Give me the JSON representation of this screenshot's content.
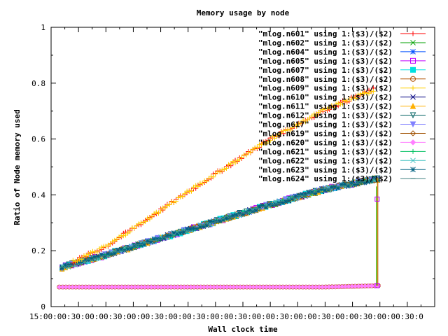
{
  "chart_data": {
    "type": "scatter",
    "title": "Memory usage by node",
    "xlabel": "Wall clock time",
    "ylabel": "Ratio of Node memory used",
    "ylim": [
      0,
      1
    ],
    "yticks": [
      "0",
      "0.2",
      "0.4",
      "0.6",
      "0.8",
      "1"
    ],
    "xticks": [
      "15:00",
      "15:30",
      "16:00",
      "16:30",
      "17:00",
      "17:30",
      "18:00",
      "18:30",
      "19:00",
      "19:30",
      "20:00",
      "20:30",
      "21:00",
      "21:30",
      "22:00"
    ],
    "xtick_text": "15:00:00:30:00:00:30:00:00:30:00:00:30:00:00:30:00:00:30:00:00:30:00:00:30:00:00:30:0",
    "xrange_hours": [
      15,
      22
    ],
    "grid": false,
    "legend_position": "top-right",
    "series": [
      {
        "name": "\"mlog.n601\" using 1:($3)/($2)",
        "color": "#ff0000",
        "marker": "plus",
        "group": "high",
        "points": [
          [
            15.4,
            0.16
          ],
          [
            16.0,
            0.215
          ],
          [
            17.0,
            0.345
          ],
          [
            18.0,
            0.475
          ],
          [
            19.0,
            0.6
          ],
          [
            20.0,
            0.705
          ],
          [
            20.88,
            0.777
          ]
        ]
      },
      {
        "name": "\"mlog.n602\" using 1:($3)/($2)",
        "color": "#00a000",
        "marker": "cross",
        "group": "mid",
        "points": [
          [
            15.2,
            0.14
          ],
          [
            16.0,
            0.185
          ],
          [
            17.0,
            0.245
          ],
          [
            18.0,
            0.305
          ],
          [
            19.0,
            0.365
          ],
          [
            20.0,
            0.42
          ],
          [
            21.0,
            0.46
          ]
        ]
      },
      {
        "name": "\"mlog.n604\" using 1:($3)/($2)",
        "color": "#0050ff",
        "marker": "star",
        "group": "mid",
        "points": [
          [
            15.2,
            0.14
          ],
          [
            16.0,
            0.185
          ],
          [
            17.0,
            0.245
          ],
          [
            18.0,
            0.305
          ],
          [
            19.0,
            0.365
          ],
          [
            20.0,
            0.42
          ],
          [
            21.0,
            0.46
          ]
        ]
      },
      {
        "name": "\"mlog.n605\" using 1:($3)/($2)",
        "color": "#c000ff",
        "marker": "box",
        "group": "mid",
        "points": [
          [
            15.2,
            0.14
          ],
          [
            16.0,
            0.185
          ],
          [
            17.0,
            0.245
          ],
          [
            18.0,
            0.305
          ],
          [
            19.0,
            0.365
          ],
          [
            20.0,
            0.42
          ],
          [
            21.0,
            0.46
          ]
        ]
      },
      {
        "name": "\"mlog.n607\" using 1:($3)/($2)",
        "color": "#00e0e0",
        "marker": "fbox",
        "group": "mid",
        "points": [
          [
            15.2,
            0.14
          ],
          [
            16.0,
            0.185
          ],
          [
            17.0,
            0.245
          ],
          [
            18.0,
            0.305
          ],
          [
            19.0,
            0.365
          ],
          [
            20.0,
            0.42
          ],
          [
            21.0,
            0.46
          ]
        ]
      },
      {
        "name": "\"mlog.n608\" using 1:($3)/($2)",
        "color": "#b05000",
        "marker": "circle",
        "group": "low",
        "points": [
          [
            15.15,
            0.07
          ],
          [
            16.0,
            0.07
          ],
          [
            17.0,
            0.07
          ],
          [
            18.0,
            0.07
          ],
          [
            19.0,
            0.07
          ],
          [
            20.0,
            0.07
          ],
          [
            21.0,
            0.075
          ]
        ]
      },
      {
        "name": "\"mlog.n609\" using 1:($3)/($2)",
        "color": "#ffd000",
        "marker": "plus",
        "group": "high",
        "points": [
          [
            15.4,
            0.16
          ],
          [
            16.0,
            0.215
          ],
          [
            17.0,
            0.345
          ],
          [
            18.0,
            0.475
          ],
          [
            19.0,
            0.6
          ],
          [
            20.0,
            0.705
          ],
          [
            20.88,
            0.775
          ]
        ]
      },
      {
        "name": "\"mlog.n610\" using 1:($3)/($2)",
        "color": "#000080",
        "marker": "cross",
        "group": "mid",
        "points": [
          [
            15.2,
            0.14
          ],
          [
            16.0,
            0.185
          ],
          [
            17.0,
            0.245
          ],
          [
            18.0,
            0.305
          ],
          [
            19.0,
            0.365
          ],
          [
            20.0,
            0.42
          ],
          [
            21.0,
            0.46
          ]
        ]
      },
      {
        "name": "\"mlog.n611\" using 1:($3)/($2)",
        "color": "#ffb000",
        "marker": "ftri",
        "group": "mid",
        "points": [
          [
            15.2,
            0.14
          ],
          [
            16.0,
            0.185
          ],
          [
            17.0,
            0.245
          ],
          [
            18.0,
            0.305
          ],
          [
            19.0,
            0.365
          ],
          [
            20.0,
            0.42
          ],
          [
            21.0,
            0.46
          ]
        ]
      },
      {
        "name": "\"mlog.n612\" using 1:($3)/($2)",
        "color": "#006060",
        "marker": "tridown",
        "group": "mid",
        "points": [
          [
            15.2,
            0.14
          ],
          [
            16.0,
            0.185
          ],
          [
            17.0,
            0.245
          ],
          [
            18.0,
            0.305
          ],
          [
            19.0,
            0.365
          ],
          [
            20.0,
            0.42
          ],
          [
            21.0,
            0.46
          ]
        ]
      },
      {
        "name": "\"mlog.n617\" using 1:($3)/($2)",
        "color": "#8080ff",
        "marker": "ftridown",
        "group": "mid",
        "points": [
          [
            15.2,
            0.14
          ],
          [
            16.0,
            0.185
          ],
          [
            17.0,
            0.245
          ],
          [
            18.0,
            0.305
          ],
          [
            19.0,
            0.365
          ],
          [
            20.0,
            0.42
          ],
          [
            21.0,
            0.46
          ]
        ]
      },
      {
        "name": "\"mlog.n619\" using 1:($3)/($2)",
        "color": "#a05000",
        "marker": "diamond",
        "group": "mid",
        "points": [
          [
            15.2,
            0.14
          ],
          [
            16.0,
            0.185
          ],
          [
            17.0,
            0.245
          ],
          [
            18.0,
            0.305
          ],
          [
            19.0,
            0.365
          ],
          [
            20.0,
            0.42
          ],
          [
            21.0,
            0.46
          ]
        ]
      },
      {
        "name": "\"mlog.n620\" using 1:($3)/($2)",
        "color": "#ff80ff",
        "marker": "fdiamond",
        "group": "low",
        "points": [
          [
            15.15,
            0.07
          ],
          [
            16.0,
            0.07
          ],
          [
            17.0,
            0.07
          ],
          [
            18.0,
            0.07
          ],
          [
            19.0,
            0.07
          ],
          [
            20.0,
            0.07
          ],
          [
            21.0,
            0.075
          ]
        ]
      },
      {
        "name": "\"mlog.n621\" using 1:($3)/($2)",
        "color": "#00c060",
        "marker": "plus",
        "group": "mid",
        "points": [
          [
            15.2,
            0.14
          ],
          [
            16.0,
            0.185
          ],
          [
            17.0,
            0.245
          ],
          [
            18.0,
            0.305
          ],
          [
            19.0,
            0.365
          ],
          [
            20.0,
            0.42
          ],
          [
            21.0,
            0.46
          ]
        ]
      },
      {
        "name": "\"mlog.n622\" using 1:($3)/($2)",
        "color": "#40c0c0",
        "marker": "cross",
        "group": "mid",
        "points": [
          [
            15.2,
            0.14
          ],
          [
            16.0,
            0.185
          ],
          [
            17.0,
            0.245
          ],
          [
            18.0,
            0.305
          ],
          [
            19.0,
            0.365
          ],
          [
            20.0,
            0.42
          ],
          [
            21.0,
            0.46
          ]
        ]
      },
      {
        "name": "\"mlog.n623\" using 1:($3)/($2)",
        "color": "#006080",
        "marker": "star",
        "group": "mid",
        "points": [
          [
            15.2,
            0.14
          ],
          [
            16.0,
            0.185
          ],
          [
            17.0,
            0.245
          ],
          [
            18.0,
            0.305
          ],
          [
            19.0,
            0.365
          ],
          [
            20.0,
            0.42
          ],
          [
            21.0,
            0.46
          ]
        ]
      },
      {
        "name": "\"mlog.n624\" using 1:($3)/($2)",
        "color": "#408080",
        "marker": "dash",
        "group": "mid",
        "points": [
          [
            15.2,
            0.14
          ],
          [
            16.0,
            0.185
          ],
          [
            17.0,
            0.245
          ],
          [
            18.0,
            0.305
          ],
          [
            19.0,
            0.365
          ],
          [
            20.0,
            0.42
          ],
          [
            21.0,
            0.46
          ]
        ]
      }
    ],
    "end_drop": {
      "x": 20.95,
      "y_values": [
        0.385,
        0.075
      ]
    }
  }
}
